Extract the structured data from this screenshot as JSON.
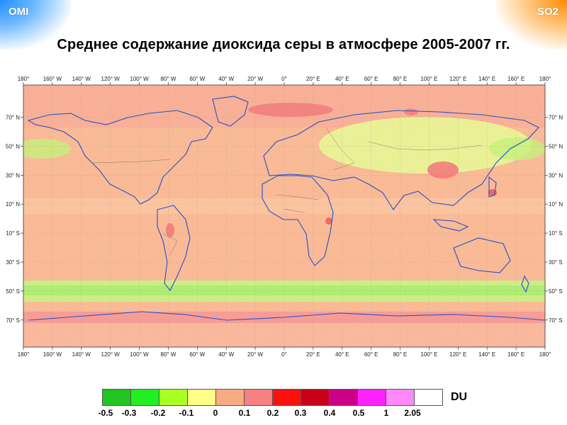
{
  "header": {
    "left_label": "OMI",
    "right_label": "SO2",
    "title": "Среднее содержание диоксида серы в атмосфере 2005-2007 гг."
  },
  "map": {
    "lon_labels": [
      "180°",
      "160° W",
      "140° W",
      "120° W",
      "100° W",
      "80° W",
      "60° W",
      "40° W",
      "20° W",
      "0°",
      "20° E",
      "40° E",
      "60° E",
      "80° E",
      "100° E",
      "120° E",
      "140° E",
      "160° E",
      "180°"
    ],
    "lat_labels": [
      "70° N",
      "50° N",
      "30° N",
      "10° N",
      "10° S",
      "30° S",
      "50° S",
      "70° S"
    ],
    "colors": {
      "ocean": "#f8ab80",
      "land_north": "#e4ee8a",
      "coast": "#2550c8",
      "border": "#444444",
      "green_band": "#a6ee58",
      "red_band": "#f48080"
    }
  },
  "legend": {
    "unit": "DU",
    "ticks": [
      "-0.5",
      "-0.3",
      "-0.2",
      "-0.1",
      "0",
      "0.1",
      "0.2",
      "0.3",
      "0.4",
      "0.5",
      "1",
      "2.05"
    ],
    "colors": [
      "#22c422",
      "#22ee22",
      "#aaff22",
      "#ffff88",
      "#f8ab80",
      "#f88080",
      "#ff1010",
      "#c80018",
      "#cc0088",
      "#ff22ff",
      "#ff88ff",
      "#ffffff"
    ]
  }
}
